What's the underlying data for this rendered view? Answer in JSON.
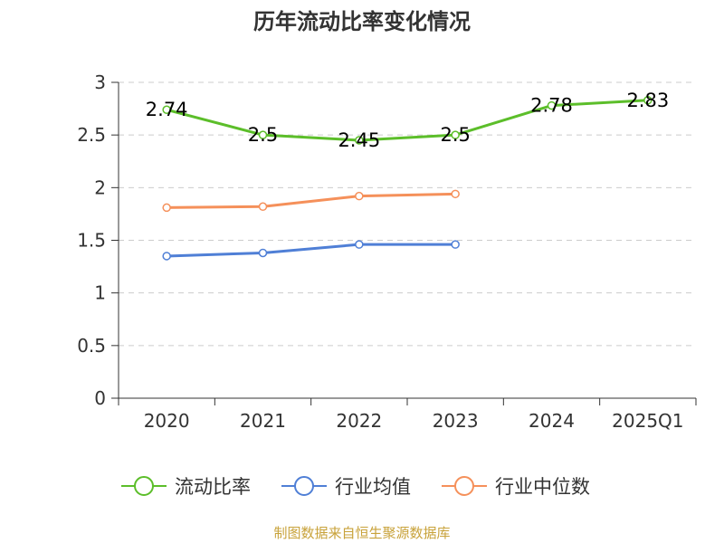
{
  "chart_data": {
    "type": "line",
    "title": "历年流动比率变化情况",
    "categories": [
      "2020",
      "2021",
      "2022",
      "2023",
      "2024",
      "2025Q1"
    ],
    "ylim": [
      0,
      3
    ],
    "yticks": [
      "0",
      "0.5",
      "1",
      "1.5",
      "2",
      "2.5",
      "3"
    ],
    "grid": true,
    "legend_position": "bottom",
    "series": [
      {
        "name": "流动比率",
        "color": "#5cbe2a",
        "values": [
          2.74,
          2.5,
          2.45,
          2.5,
          2.78,
          2.83
        ],
        "labels": [
          "2.74",
          "2.5",
          "2.45",
          "2.5",
          "2.78",
          "2.83"
        ]
      },
      {
        "name": "行业均值",
        "color": "#4f7fd6",
        "values": [
          1.35,
          1.38,
          1.46,
          1.46,
          null,
          null
        ]
      },
      {
        "name": "行业中位数",
        "color": "#f5905a",
        "values": [
          1.81,
          1.82,
          1.92,
          1.94,
          null,
          null
        ]
      }
    ],
    "source": "制图数据来自恒生聚源数据库"
  }
}
